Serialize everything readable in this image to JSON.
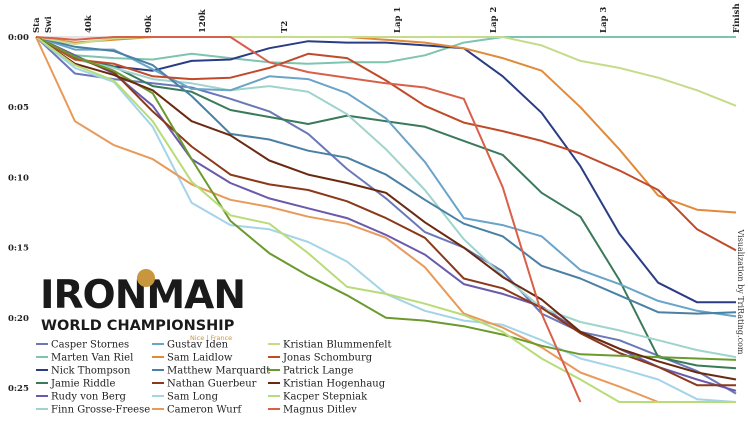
{
  "chart_data": {
    "type": "line",
    "title": "",
    "xlabel": "",
    "ylabel": "",
    "x_ticks": [
      "Sta",
      "Swi",
      "40k",
      "90k",
      "120k",
      "T2",
      "Lap 1",
      "Lap 2",
      "Lap 3",
      "Finish"
    ],
    "y_ticks": [
      "0:00",
      "0:05",
      "0:10",
      "0:15",
      "0:20",
      "0:25"
    ],
    "ylim_minutes": [
      0,
      26
    ],
    "y_inverted": true,
    "grid": false,
    "legend_position": "bottom-left",
    "credit": "Visualization by TriRating.com",
    "logo": {
      "wordmark": "IRONMAN",
      "subtitle": "WORLD CHAMPIONSHIP",
      "location": "Nice | France",
      "accent": "#c8963c"
    },
    "series": [
      {
        "name": "Casper Stornes",
        "color": "#6a78b8",
        "gap_minutes": [
          0,
          2.6,
          3.0,
          3.3,
          3.6,
          4.4,
          5.3,
          6.9,
          9.4,
          11.5,
          13.9,
          15.0,
          16.7,
          19.7,
          21.0,
          21.6,
          22.7,
          23.8,
          25.4
        ]
      },
      {
        "name": "Marten Van Riel",
        "color": "#7ec4b0",
        "gap_minutes": [
          0,
          1.3,
          1.5,
          1.6,
          1.2,
          1.5,
          1.8,
          1.9,
          1.8,
          1.8,
          1.3,
          0.4,
          0.0,
          0.0,
          0.0,
          0.0,
          0.0,
          0.0,
          0.0
        ]
      },
      {
        "name": "Nick Thompson",
        "color": "#2a3c84",
        "gap_minutes": [
          0,
          1.5,
          2.1,
          2.4,
          1.7,
          1.6,
          0.8,
          0.3,
          0.4,
          0.4,
          0.6,
          0.8,
          2.8,
          5.4,
          9.2,
          14.0,
          17.5,
          18.9,
          18.9
        ]
      },
      {
        "name": "Jamie Riddle",
        "color": "#3a7a5a",
        "gap_minutes": [
          0,
          1.6,
          2.1,
          3.5,
          3.9,
          5.2,
          5.7,
          6.2,
          5.6,
          6.0,
          6.4,
          7.4,
          8.4,
          11.1,
          12.8,
          17.3,
          22.8,
          23.4,
          23.6
        ]
      },
      {
        "name": "Rudy von Berg",
        "color": "#6a5aac",
        "gap_minutes": [
          0,
          1.3,
          2.6,
          4.9,
          8.7,
          10.4,
          11.5,
          12.2,
          12.9,
          14.1,
          15.5,
          17.6,
          18.3,
          19.2,
          21.0,
          22.2,
          23.5,
          24.4,
          25.2
        ]
      },
      {
        "name": "Finn Grosse-Freese",
        "color": "#9fd4cc",
        "gap_minutes": [
          0,
          1.6,
          2.2,
          3.0,
          3.3,
          3.8,
          3.5,
          3.9,
          5.5,
          8.0,
          10.9,
          14.4,
          17.0,
          19.3,
          20.3,
          20.9,
          21.6,
          22.3,
          22.8
        ]
      },
      {
        "name": "Gustav Iden",
        "color": "#6aa4c8",
        "gap_minutes": [
          0,
          0.9,
          0.9,
          2.3,
          3.7,
          3.8,
          2.8,
          3.0,
          4.0,
          5.8,
          8.9,
          12.9,
          13.4,
          14.2,
          16.6,
          17.6,
          18.8,
          19.5,
          19.9
        ]
      },
      {
        "name": "Sam Laidlow",
        "color": "#e08a3a",
        "gap_minutes": [
          0,
          0.4,
          0.2,
          0.0,
          0.0,
          0.0,
          0.0,
          0.0,
          0.0,
          0.2,
          0.4,
          0.8,
          1.5,
          2.4,
          5.0,
          8.0,
          11.3,
          12.3,
          12.5
        ]
      },
      {
        "name": "Matthew Marquardt",
        "color": "#4a80a4",
        "gap_minutes": [
          0,
          0.7,
          1.0,
          2.0,
          4.2,
          6.9,
          7.3,
          8.1,
          8.6,
          9.8,
          11.6,
          13.3,
          14.2,
          16.3,
          17.2,
          18.4,
          19.6,
          19.7,
          19.6
        ]
      },
      {
        "name": "Nathan Guerbeur",
        "color": "#8a3a1a",
        "gap_minutes": [
          0,
          1.4,
          2.5,
          5.3,
          7.8,
          9.8,
          10.5,
          10.9,
          11.7,
          12.9,
          14.3,
          17.2,
          17.9,
          19.3,
          21.1,
          22.5,
          23.5,
          24.8,
          24.8
        ]
      },
      {
        "name": "Sam Long",
        "color": "#a4d4e8",
        "gap_minutes": [
          0,
          2.2,
          3.2,
          6.4,
          11.8,
          13.4,
          13.7,
          14.6,
          16.0,
          18.3,
          19.5,
          20.2,
          20.5,
          21.6,
          22.9,
          23.6,
          24.4,
          25.8,
          26.0
        ]
      },
      {
        "name": "Cameron Wurf",
        "color": "#e89a5a",
        "gap_minutes": [
          0,
          6.0,
          7.7,
          8.7,
          10.5,
          11.6,
          12.1,
          12.8,
          13.3,
          14.3,
          16.4,
          19.7,
          20.7,
          22.1,
          23.9,
          24.9,
          26.0,
          26.0,
          26.0
        ]
      },
      {
        "name": "Kristian Blummenfelt",
        "color": "#c4dc8a",
        "gap_minutes": [
          0,
          0.5,
          0.1,
          0.0,
          0.0,
          0.0,
          0.0,
          0.0,
          0.0,
          0.0,
          0.0,
          0.0,
          0.0,
          0.6,
          1.7,
          2.2,
          2.9,
          3.8,
          4.9
        ]
      },
      {
        "name": "Jonas Schomburg",
        "color": "#c04a2a",
        "gap_minutes": [
          0,
          1.6,
          1.9,
          2.8,
          3.0,
          2.9,
          2.2,
          1.2,
          1.5,
          3.1,
          4.9,
          6.1,
          6.7,
          7.4,
          8.3,
          9.5,
          10.9,
          13.7,
          15.2
        ]
      },
      {
        "name": "Patrick Lange",
        "color": "#6a9a2e",
        "gap_minutes": [
          0,
          1.4,
          2.4,
          4.0,
          8.7,
          13.1,
          15.4,
          17.0,
          18.4,
          20.0,
          20.2,
          20.6,
          21.2,
          22.0,
          22.6,
          22.7,
          22.8,
          22.9,
          23.0
        ]
      },
      {
        "name": "Kristian Hogenhaug",
        "color": "#6a2a10",
        "gap_minutes": [
          0,
          1.9,
          2.7,
          3.8,
          6.0,
          7.0,
          8.8,
          9.8,
          10.4,
          11.1,
          13.2,
          15.0,
          17.1,
          18.7,
          21.0,
          22.2,
          23.1,
          23.9,
          24.4
        ]
      },
      {
        "name": "Kacper Stepniak",
        "color": "#b8dc78",
        "gap_minutes": [
          0,
          2.0,
          3.1,
          6.0,
          10.3,
          12.7,
          13.3,
          15.4,
          17.8,
          18.3,
          19.0,
          19.8,
          21.0,
          22.9,
          24.4,
          26.0,
          26.0,
          26.0,
          26.0
        ]
      },
      {
        "name": "Magnus Ditlev",
        "color": "#d8604a",
        "gap_minutes": [
          0,
          0.2,
          0.0,
          0.0,
          0.0,
          0.0,
          1.8,
          2.5,
          2.9,
          3.3,
          3.6,
          4.4,
          10.7,
          19.7,
          26.0
        ]
      }
    ]
  }
}
